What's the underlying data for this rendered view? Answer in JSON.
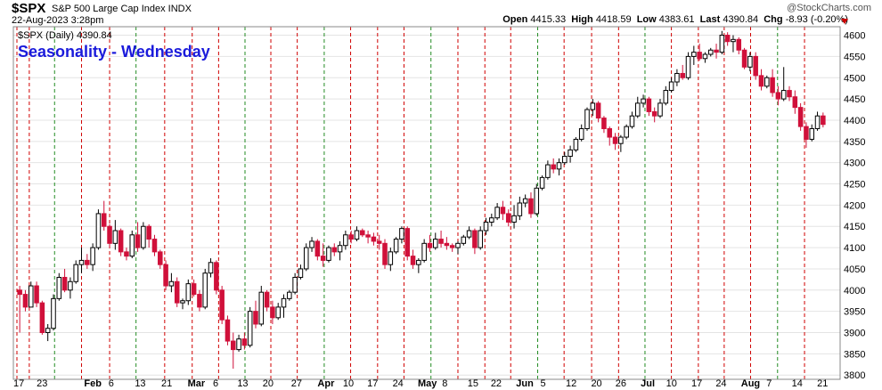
{
  "header": {
    "symbol": "$SPX",
    "description": "S&P 500 Large Cap Index INDX",
    "datetime": "22-Aug-2023 3:28pm",
    "brand": "@StockCharts.com",
    "open_label": "Open",
    "open": "4415.33",
    "high_label": "High",
    "high": "4418.59",
    "low_label": "Low",
    "low": "4383.61",
    "last_label": "Last",
    "last": "4390.84",
    "chg_label": "Chg",
    "chg": "-8.93 (-0.20%)"
  },
  "chart_data": {
    "type": "candlestick",
    "title": "Seasonality - Wednesday",
    "legend": "$SPX (Daily) 4390.84",
    "ylim": [
      3790,
      4620
    ],
    "y_ticks": [
      3800,
      3850,
      3900,
      3950,
      4000,
      4050,
      4100,
      4150,
      4200,
      4250,
      4300,
      4350,
      4400,
      4450,
      4500,
      4550,
      4600
    ],
    "x_tick_labels": [
      "17",
      "23",
      "Feb",
      "6",
      "13",
      "21",
      "Mar",
      "6",
      "13",
      "20",
      "27",
      "Apr",
      "10",
      "17",
      "24",
      "May",
      "8",
      "15",
      "22",
      "Jun",
      "5",
      "12",
      "20",
      "26",
      "Jul",
      "10",
      "17",
      "24",
      "Aug",
      "7",
      "14",
      "21"
    ],
    "grid": true,
    "colors": {
      "up": "#ffffff",
      "down": "#d0103a",
      "wednesday_line": "#228b22",
      "other_line": "#d00000",
      "title": "#1a1adb"
    },
    "series": [
      {
        "candles": [
          [
            4000,
            4010,
            3900,
            3990
          ],
          [
            3990,
            4000,
            3950,
            3960
          ],
          [
            3960,
            4020,
            3960,
            4010
          ],
          [
            4010,
            4020,
            3960,
            3970
          ],
          [
            3970,
            3975,
            3895,
            3900
          ],
          [
            3900,
            3920,
            3880,
            3910
          ],
          [
            3910,
            3990,
            3905,
            3980
          ],
          [
            3980,
            4040,
            3975,
            4030
          ],
          [
            4030,
            4050,
            3995,
            4000
          ],
          [
            4000,
            4030,
            3980,
            4020
          ],
          [
            4020,
            4070,
            4015,
            4060
          ],
          [
            4060,
            4100,
            4040,
            4070
          ],
          [
            4070,
            4085,
            4050,
            4060
          ],
          [
            4060,
            4110,
            4045,
            4100
          ],
          [
            4100,
            4190,
            4095,
            4180
          ],
          [
            4180,
            4210,
            4140,
            4150
          ],
          [
            4150,
            4155,
            4100,
            4110
          ],
          [
            4110,
            4165,
            4095,
            4140
          ],
          [
            4140,
            4145,
            4080,
            4090
          ],
          [
            4090,
            4100,
            4070,
            4080
          ],
          [
            4080,
            4140,
            4075,
            4130
          ],
          [
            4130,
            4160,
            4090,
            4100
          ],
          [
            4100,
            4160,
            4095,
            4150
          ],
          [
            4150,
            4155,
            4100,
            4120
          ],
          [
            4120,
            4130,
            4080,
            4090
          ],
          [
            4090,
            4095,
            4050,
            4060
          ],
          [
            4060,
            4070,
            4000,
            4010
          ],
          [
            4010,
            4040,
            3995,
            4020
          ],
          [
            4020,
            4030,
            3960,
            3970
          ],
          [
            3970,
            3980,
            3955,
            3975
          ],
          [
            3975,
            4025,
            3965,
            4015
          ],
          [
            4015,
            4025,
            3985,
            3990
          ],
          [
            3990,
            4000,
            3950,
            3960
          ],
          [
            3960,
            4050,
            3955,
            4040
          ],
          [
            4040,
            4075,
            4030,
            4065
          ],
          [
            4065,
            4070,
            3990,
            4000
          ],
          [
            4000,
            4010,
            3920,
            3930
          ],
          [
            3930,
            3940,
            3870,
            3880
          ],
          [
            3880,
            3900,
            3815,
            3860
          ],
          [
            3860,
            3895,
            3855,
            3885
          ],
          [
            3885,
            3900,
            3860,
            3870
          ],
          [
            3870,
            3960,
            3865,
            3950
          ],
          [
            3950,
            3975,
            3910,
            3920
          ],
          [
            3920,
            4010,
            3915,
            3995
          ],
          [
            3995,
            4000,
            3950,
            3960
          ],
          [
            3960,
            3975,
            3920,
            3935
          ],
          [
            3935,
            3970,
            3930,
            3960
          ],
          [
            3960,
            3990,
            3935,
            3980
          ],
          [
            3980,
            4000,
            3975,
            3995
          ],
          [
            3995,
            4040,
            3990,
            4030
          ],
          [
            4030,
            4060,
            4025,
            4050
          ],
          [
            4050,
            4110,
            4045,
            4100
          ],
          [
            4100,
            4125,
            4090,
            4115
          ],
          [
            4115,
            4120,
            4070,
            4080
          ],
          [
            4080,
            4110,
            4055,
            4070
          ],
          [
            4070,
            4105,
            4065,
            4100
          ],
          [
            4100,
            4110,
            4080,
            4090
          ],
          [
            4090,
            4115,
            4070,
            4105
          ],
          [
            4105,
            4140,
            4095,
            4130
          ],
          [
            4130,
            4140,
            4110,
            4120
          ],
          [
            4120,
            4150,
            4115,
            4140
          ],
          [
            4140,
            4145,
            4125,
            4130
          ],
          [
            4130,
            4140,
            4110,
            4125
          ],
          [
            4125,
            4135,
            4105,
            4115
          ],
          [
            4115,
            4130,
            4095,
            4110
          ],
          [
            4110,
            4120,
            4050,
            4060
          ],
          [
            4060,
            4100,
            4045,
            4090
          ],
          [
            4090,
            4125,
            4085,
            4120
          ],
          [
            4120,
            4150,
            4110,
            4145
          ],
          [
            4145,
            4150,
            4070,
            4080
          ],
          [
            4080,
            4095,
            4050,
            4060
          ],
          [
            4060,
            4075,
            4040,
            4070
          ],
          [
            4070,
            4120,
            4065,
            4110
          ],
          [
            4110,
            4130,
            4090,
            4100
          ],
          [
            4100,
            4135,
            4095,
            4120
          ],
          [
            4120,
            4140,
            4100,
            4110
          ],
          [
            4110,
            4125,
            4095,
            4105
          ],
          [
            4105,
            4110,
            4090,
            4100
          ],
          [
            4100,
            4115,
            4085,
            4110
          ],
          [
            4110,
            4130,
            4105,
            4125
          ],
          [
            4125,
            4150,
            4120,
            4140
          ],
          [
            4140,
            4145,
            4085,
            4100
          ],
          [
            4100,
            4150,
            4095,
            4140
          ],
          [
            4140,
            4170,
            4130,
            4160
          ],
          [
            4160,
            4180,
            4150,
            4170
          ],
          [
            4170,
            4205,
            4165,
            4195
          ],
          [
            4195,
            4210,
            4165,
            4180
          ],
          [
            4180,
            4190,
            4150,
            4160
          ],
          [
            4160,
            4200,
            4145,
            4175
          ],
          [
            4175,
            4220,
            4165,
            4205
          ],
          [
            4205,
            4225,
            4195,
            4215
          ],
          [
            4215,
            4230,
            4170,
            4180
          ],
          [
            4180,
            4250,
            4175,
            4240
          ],
          [
            4240,
            4270,
            4235,
            4265
          ],
          [
            4265,
            4305,
            4260,
            4295
          ],
          [
            4295,
            4310,
            4275,
            4285
          ],
          [
            4285,
            4310,
            4270,
            4300
          ],
          [
            4300,
            4325,
            4295,
            4315
          ],
          [
            4315,
            4340,
            4300,
            4330
          ],
          [
            4330,
            4360,
            4325,
            4355
          ],
          [
            4355,
            4390,
            4350,
            4380
          ],
          [
            4380,
            4430,
            4375,
            4425
          ],
          [
            4425,
            4450,
            4410,
            4440
          ],
          [
            4440,
            4445,
            4395,
            4405
          ],
          [
            4405,
            4410,
            4370,
            4380
          ],
          [
            4380,
            4385,
            4340,
            4360
          ],
          [
            4360,
            4370,
            4330,
            4345
          ],
          [
            4345,
            4365,
            4325,
            4360
          ],
          [
            4360,
            4390,
            4355,
            4385
          ],
          [
            4385,
            4420,
            4380,
            4410
          ],
          [
            4410,
            4455,
            4405,
            4440
          ],
          [
            4440,
            4460,
            4430,
            4450
          ],
          [
            4450,
            4455,
            4410,
            4420
          ],
          [
            4420,
            4430,
            4395,
            4410
          ],
          [
            4410,
            4450,
            4405,
            4440
          ],
          [
            4440,
            4480,
            4435,
            4470
          ],
          [
            4470,
            4500,
            4465,
            4490
          ],
          [
            4490,
            4520,
            4480,
            4510
          ],
          [
            4510,
            4530,
            4495,
            4500
          ],
          [
            4500,
            4560,
            4495,
            4550
          ],
          [
            4550,
            4575,
            4530,
            4560
          ],
          [
            4560,
            4580,
            4540,
            4545
          ],
          [
            4545,
            4560,
            4535,
            4555
          ],
          [
            4555,
            4570,
            4550,
            4565
          ],
          [
            4565,
            4580,
            4545,
            4560
          ],
          [
            4560,
            4610,
            4555,
            4600
          ],
          [
            4600,
            4607,
            4575,
            4585
          ],
          [
            4585,
            4600,
            4560,
            4590
          ],
          [
            4590,
            4595,
            4555,
            4565
          ],
          [
            4565,
            4570,
            4520,
            4525
          ],
          [
            4525,
            4560,
            4515,
            4550
          ],
          [
            4550,
            4560,
            4495,
            4505
          ],
          [
            4505,
            4520,
            4470,
            4480
          ],
          [
            4480,
            4505,
            4475,
            4500
          ],
          [
            4500,
            4520,
            4455,
            4465
          ],
          [
            4465,
            4480,
            4435,
            4450
          ],
          [
            4450,
            4525,
            4445,
            4470
          ],
          [
            4470,
            4480,
            4445,
            4455
          ],
          [
            4455,
            4470,
            4415,
            4430
          ],
          [
            4430,
            4440,
            4375,
            4385
          ],
          [
            4385,
            4395,
            4335,
            4355
          ],
          [
            4355,
            4390,
            4350,
            4380
          ],
          [
            4380,
            4420,
            4375,
            4410
          ],
          [
            4410,
            4418,
            4383,
            4390
          ]
        ]
      }
    ]
  }
}
